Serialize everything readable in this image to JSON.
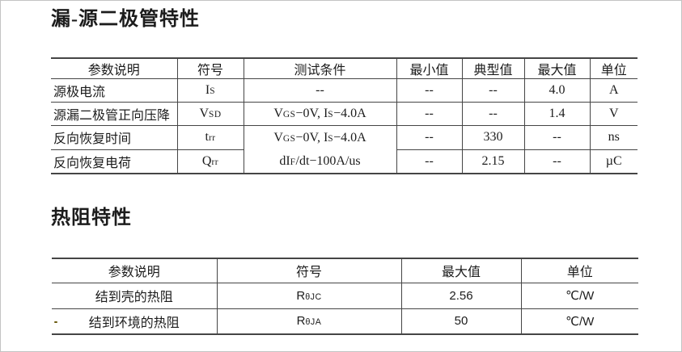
{
  "page": {
    "title1": "漏-源二极管特性",
    "title2": "热阻特性"
  },
  "diode_table": {
    "headers": [
      "参数说明",
      "符号",
      "测试条件",
      "最小值",
      "典型值",
      "最大值",
      "单位"
    ],
    "rows": [
      {
        "param": "源极电流",
        "sym": [
          [
            "t",
            "I"
          ],
          [
            "s",
            "S"
          ]
        ],
        "cond": [
          [
            "t",
            "--"
          ]
        ],
        "min": "--",
        "typ": "--",
        "max": "4.0",
        "unit": "A"
      },
      {
        "param": "源漏二极管正向压降",
        "sym": [
          [
            "t",
            "V"
          ],
          [
            "s",
            "SD"
          ]
        ],
        "cond": [
          [
            "t",
            "V"
          ],
          [
            "s",
            "GS"
          ],
          [
            "t",
            "−0V, I"
          ],
          [
            "s",
            "S"
          ],
          [
            "t",
            "−4.0A"
          ]
        ],
        "min": "--",
        "typ": "--",
        "max": "1.4",
        "unit": "V"
      },
      {
        "param": "反向恢复时间",
        "sym": [
          [
            "t",
            "t"
          ],
          [
            "s",
            "rr"
          ]
        ],
        "cond": [
          [
            "t",
            "V"
          ],
          [
            "s",
            "GS"
          ],
          [
            "t",
            "−0V, I"
          ],
          [
            "s",
            "S"
          ],
          [
            "t",
            "−4.0A"
          ]
        ],
        "min": "--",
        "typ": "330",
        "max": "--",
        "unit": "ns"
      },
      {
        "param": "反向恢复电荷",
        "sym": [
          [
            "t",
            "Q"
          ],
          [
            "s",
            "rr"
          ]
        ],
        "cond": [
          [
            "t",
            "dI"
          ],
          [
            "s",
            "F"
          ],
          [
            "t",
            "/dt−100A/us"
          ]
        ],
        "min": "--",
        "typ": "2.15",
        "max": "--",
        "unit": "µC"
      }
    ]
  },
  "thermal_table": {
    "headers": [
      "参数说明",
      "符号",
      "最大值",
      "单位"
    ],
    "rows": [
      {
        "param": "结到壳的热阻",
        "sym": [
          [
            "t",
            "R"
          ],
          [
            "s",
            "θJC"
          ]
        ],
        "max": "2.56",
        "unit": "℃/W"
      },
      {
        "param": "结到环境的热阻",
        "sym": [
          [
            "t",
            "R"
          ],
          [
            "s",
            "θJA"
          ]
        ],
        "max": "50",
        "unit": "℃/W"
      }
    ]
  }
}
